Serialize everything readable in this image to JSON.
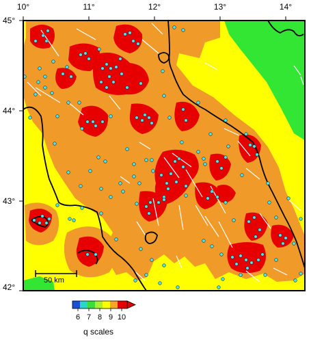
{
  "map": {
    "lon_ticks": [
      "10°",
      "11°",
      "12°",
      "13°",
      "14°"
    ],
    "lat_ticks": [
      "45°",
      "44°",
      "43°",
      "42°"
    ],
    "scale_bar_label": "50 km",
    "colorbar": {
      "title": "q scales",
      "ticks": [
        "6",
        "7",
        "8",
        "9",
        "10"
      ],
      "colors": [
        "#1a4fd6",
        "#2ad6c8",
        "#3cdc3c",
        "#ffff00",
        "#f5a623",
        "#ee7a12",
        "#e40000"
      ]
    },
    "zone_colors": {
      "q6": "#1a4fd6",
      "q7": "#33d633",
      "q8": "#ffff00",
      "q9": "#f09a2a",
      "q10": "#e60000"
    },
    "station_color": "#55e0e8",
    "coastline_color": "#000000",
    "fault_color": "#ffffff"
  }
}
